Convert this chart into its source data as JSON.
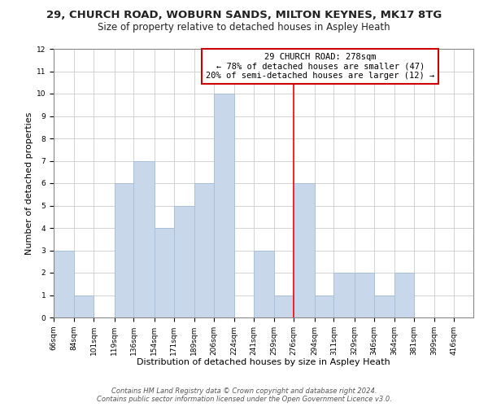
{
  "title_line1": "29, CHURCH ROAD, WOBURN SANDS, MILTON KEYNES, MK17 8TG",
  "title_line2": "Size of property relative to detached houses in Aspley Heath",
  "xlabel": "Distribution of detached houses by size in Aspley Heath",
  "ylabel": "Number of detached properties",
  "bar_edges": [
    66,
    84,
    101,
    119,
    136,
    154,
    171,
    189,
    206,
    224,
    241,
    259,
    276,
    294,
    311,
    329,
    346,
    364,
    381,
    399,
    416
  ],
  "bar_heights": [
    3,
    1,
    0,
    6,
    7,
    4,
    5,
    6,
    10,
    0,
    3,
    1,
    6,
    1,
    2,
    2,
    1,
    2,
    0,
    0,
    0
  ],
  "bar_color": "#c8d8ea",
  "bar_edgecolor": "#a8c0d8",
  "red_line_x": 276,
  "ylim": [
    0,
    12
  ],
  "yticks": [
    0,
    1,
    2,
    3,
    4,
    5,
    6,
    7,
    8,
    9,
    10,
    11,
    12
  ],
  "xtick_labels": [
    "66sqm",
    "84sqm",
    "101sqm",
    "119sqm",
    "136sqm",
    "154sqm",
    "171sqm",
    "189sqm",
    "206sqm",
    "224sqm",
    "241sqm",
    "259sqm",
    "276sqm",
    "294sqm",
    "311sqm",
    "329sqm",
    "346sqm",
    "364sqm",
    "381sqm",
    "399sqm",
    "416sqm"
  ],
  "annotation_title": "29 CHURCH ROAD: 278sqm",
  "annotation_line1": "← 78% of detached houses are smaller (47)",
  "annotation_line2": "20% of semi-detached houses are larger (12) →",
  "footer_line1": "Contains HM Land Registry data © Crown copyright and database right 2024.",
  "footer_line2": "Contains public sector information licensed under the Open Government Licence v3.0.",
  "background_color": "#ffffff",
  "grid_color": "#cccccc",
  "title_fontsize": 9.5,
  "subtitle_fontsize": 8.5,
  "axis_label_fontsize": 8,
  "tick_fontsize": 6.5,
  "annotation_fontsize": 7.5,
  "footer_fontsize": 6
}
